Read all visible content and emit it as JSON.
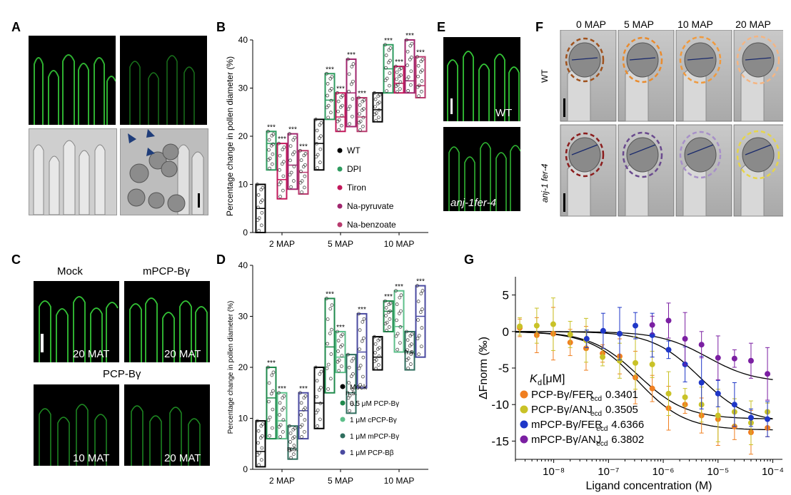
{
  "panels": {
    "A": "A",
    "B": "B",
    "C": "C",
    "D": "D",
    "E": "E",
    "F": "F",
    "G": "G"
  },
  "panel_c": {
    "mock": "Mock",
    "mpcp": "mPCP-Bγ",
    "pcp": "PCP-Bγ",
    "t1": "20 MAT",
    "t2": "20 MAT",
    "t3": "10 MAT",
    "t4": "20 MAT"
  },
  "panel_e": {
    "wt": "WT",
    "mutant": "anj-1fer-4"
  },
  "panel_f": {
    "times": [
      "0 MAP",
      "5 MAP",
      "10 MAP",
      "20 MAP"
    ],
    "row1": "WT",
    "row2": "anj-1 fer-4"
  },
  "colors": {
    "black": "#000000",
    "green": "#2e9b5f",
    "pink": "#c2185b",
    "magenta": "#a0266e",
    "rose": "#b83a6e",
    "d_green1": "#1f8a4c",
    "d_green2": "#5dbf8a",
    "d_teal": "#2f6e5e",
    "d_purple": "#4a4aa0",
    "g_orange": "#f07f21",
    "g_yellow": "#c9c227",
    "g_blue": "#1f37c8",
    "g_purple": "#7b1fa2"
  },
  "chart_data": [
    {
      "id": "B",
      "type": "box",
      "ylabel": "Percentage change in pollen diameter (%)",
      "ylim": [
        0,
        40
      ],
      "yticks": [
        "0",
        "10",
        "20",
        "30",
        "40"
      ],
      "categories": [
        "2 MAP",
        "5 MAP",
        "10 MAP"
      ],
      "legend": [
        "WT",
        "DPI",
        "Tiron",
        "Na-pyruvate",
        "Na-benzoate"
      ],
      "series": [
        {
          "name": "WT",
          "color": "#000000",
          "boxes": [
            [
              0,
              10,
              5
            ],
            [
              13,
              23.5,
              18.5
            ],
            [
              23,
              29,
              25.5
            ]
          ]
        },
        {
          "name": "DPI",
          "color": "#2e9b5f",
          "boxes": [
            [
              13,
              21,
              18.5
            ],
            [
              23.5,
              33,
              27.5
            ],
            [
              29,
              39,
              34
            ]
          ]
        },
        {
          "name": "Tiron",
          "color": "#c2185b",
          "boxes": [
            [
              7,
              18.5,
              11
            ],
            [
              21,
              29,
              24
            ],
            [
              29,
              34.5,
              31
            ]
          ]
        },
        {
          "name": "Na-pyruvate",
          "color": "#a0266e",
          "boxes": [
            [
              9,
              20.5,
              14
            ],
            [
              22,
              36,
              29
            ],
            [
              29,
              40,
              31.5
            ]
          ]
        },
        {
          "name": "Na-benzoate",
          "color": "#b83a6e",
          "boxes": [
            [
              8,
              17,
              12.5
            ],
            [
              21,
              28,
              24
            ],
            [
              28,
              36.5,
              30.5
            ]
          ]
        }
      ],
      "annotations": [
        {
          "cat": 0,
          "series": 1,
          "text": "***"
        },
        {
          "cat": 0,
          "series": 2,
          "text": "***"
        },
        {
          "cat": 0,
          "series": 3,
          "text": "***"
        },
        {
          "cat": 0,
          "series": 4,
          "text": "***"
        },
        {
          "cat": 1,
          "series": 1,
          "text": "***"
        },
        {
          "cat": 1,
          "series": 2,
          "text": "***"
        },
        {
          "cat": 1,
          "series": 3,
          "text": "***"
        },
        {
          "cat": 1,
          "series": 4,
          "text": "***"
        },
        {
          "cat": 2,
          "series": 1,
          "text": "***"
        },
        {
          "cat": 2,
          "series": 2,
          "text": "***"
        },
        {
          "cat": 2,
          "series": 3,
          "text": "***"
        },
        {
          "cat": 2,
          "series": 4,
          "text": "***"
        }
      ]
    },
    {
      "id": "D",
      "type": "box",
      "ylabel": "Percentage change in pollen diameter (%)",
      "ylim": [
        0,
        40
      ],
      "yticks": [
        "0",
        "10",
        "20",
        "30",
        "40"
      ],
      "categories": [
        "2 MAP",
        "5 MAP",
        "10 MAP"
      ],
      "legend": [
        "Mock",
        "0.5 μM PCP-Bγ",
        "1 μM cPCP-Bγ",
        "1 μM mPCP-Bγ",
        "1 μM PCP-Bβ"
      ],
      "series": [
        {
          "name": "Mock",
          "color": "#000000",
          "boxes": [
            [
              0.5,
              9.5,
              3.5
            ],
            [
              8,
              20,
              13
            ],
            [
              19.5,
              26,
              22
            ]
          ]
        },
        {
          "name": "0.5 μM PCP-Bγ",
          "color": "#1f8a4c",
          "boxes": [
            [
              6,
              20,
              14
            ],
            [
              15,
              33.5,
              24
            ],
            [
              27,
              33,
              31
            ]
          ]
        },
        {
          "name": "1 μM cPCP-Bγ",
          "color": "#5dbf8a",
          "boxes": [
            [
              6,
              15,
              9.5
            ],
            [
              19,
              27,
              22
            ],
            [
              23,
              35,
              28
            ]
          ]
        },
        {
          "name": "1 μM mPCP-Bγ",
          "color": "#2f6e5e",
          "boxes": [
            [
              2,
              8.5,
              4
            ],
            [
              11,
              22.5,
              15
            ],
            [
              19.5,
              27,
              23
            ]
          ]
        },
        {
          "name": "1 μM PCP-Bβ",
          "color": "#4a4aa0",
          "boxes": [
            [
              6,
              15,
              11.5
            ],
            [
              16,
              30.5,
              23
            ],
            [
              22,
              36,
              30
            ]
          ]
        }
      ],
      "annotations": [
        {
          "cat": 0,
          "series": 1,
          "text": "***"
        },
        {
          "cat": 0,
          "series": 2,
          "text": "***"
        },
        {
          "cat": 0,
          "series": 3,
          "text": "n.s."
        },
        {
          "cat": 0,
          "series": 4,
          "text": "***"
        },
        {
          "cat": 1,
          "series": 1,
          "text": "***"
        },
        {
          "cat": 1,
          "series": 2,
          "text": "***"
        },
        {
          "cat": 1,
          "series": 3,
          "text": "n.s."
        },
        {
          "cat": 1,
          "series": 4,
          "text": "***"
        },
        {
          "cat": 2,
          "series": 1,
          "text": "***"
        },
        {
          "cat": 2,
          "series": 2,
          "text": "***"
        },
        {
          "cat": 2,
          "series": 3,
          "text": "n.s."
        },
        {
          "cat": 2,
          "series": 4,
          "text": "***"
        }
      ]
    },
    {
      "id": "G",
      "type": "scatter",
      "xlabel": "Ligand concentration (M)",
      "ylabel": "ΔFnorm (‰)",
      "xscale": "log",
      "xlim": [
        2e-09,
        0.00015
      ],
      "ylim": [
        -17.5,
        7.5
      ],
      "yticks": [
        "5",
        "0",
        "-5",
        "-10",
        "-15"
      ],
      "xticks": [
        "10⁻⁸",
        "10⁻⁷",
        "10⁻⁶",
        "10⁻⁵",
        "10⁻⁴"
      ],
      "kd_header": "K",
      "kd_header_sub": "d",
      "kd_header_unit": " [μM]",
      "series": [
        {
          "name": "PCP-Bγ/FER",
          "sub": "ecd",
          "kd": "0.3401",
          "color": "#f07f21",
          "x": [
            2.4e-09,
            4.9e-09,
            9.8e-09,
            2e-08,
            3.9e-08,
            7.8e-08,
            1.6e-07,
            3.1e-07,
            6.3e-07,
            1.25e-06,
            2.5e-06,
            5e-06,
            1e-05,
            2e-05,
            4e-05,
            8e-05
          ],
          "y": [
            0.5,
            -0.5,
            -0.3,
            -1.5,
            -2.3,
            -3,
            -3.4,
            -6.3,
            -7.8,
            -10.5,
            -10,
            -11.5,
            -12,
            -13,
            -13.8,
            -13.2
          ]
        },
        {
          "name": "PCP-Bγ/ANJ",
          "sub": "ecd",
          "kd": "0.3505",
          "color": "#c9c227",
          "x": [
            2.4e-09,
            4.9e-09,
            9.8e-09,
            2e-08,
            3.9e-08,
            7.8e-08,
            1.6e-07,
            3.1e-07,
            6.3e-07,
            1.25e-06,
            2.5e-06,
            5e-06,
            1e-05,
            2e-05,
            4e-05,
            8e-05
          ],
          "y": [
            0.7,
            0.8,
            1,
            -0.4,
            -1.2,
            -3.5,
            -4,
            -4.3,
            -4.5,
            -8.5,
            -9,
            -10,
            -11.5,
            -11,
            -12.5,
            -11
          ]
        },
        {
          "name": "mPCP-Bγ/FER",
          "sub": "ecd",
          "kd": "4.6366",
          "color": "#1f37c8",
          "x": [
            4e-08,
            8e-08,
            1.6e-07,
            3.1e-07,
            6.3e-07,
            1.25e-06,
            2.5e-06,
            5e-06,
            1e-05,
            2e-05,
            4e-05,
            8e-05
          ],
          "y": [
            -1,
            0.1,
            -0.3,
            0.8,
            -0.5,
            -2.5,
            -4.5,
            -7,
            -8.5,
            -10,
            -11.8,
            -12
          ]
        },
        {
          "name": "mPCP-Bγ/ANJ",
          "sub": "ecd",
          "kd": "6.3802",
          "color": "#7b1fa2",
          "x": [
            6.3e-07,
            1.25e-06,
            2.5e-06,
            5e-06,
            1e-05,
            2e-05,
            4e-05,
            8e-05
          ],
          "y": [
            0.9,
            1.5,
            -1,
            -1.8,
            -3.6,
            -3.7,
            -4,
            -5.8
          ]
        }
      ]
    }
  ]
}
